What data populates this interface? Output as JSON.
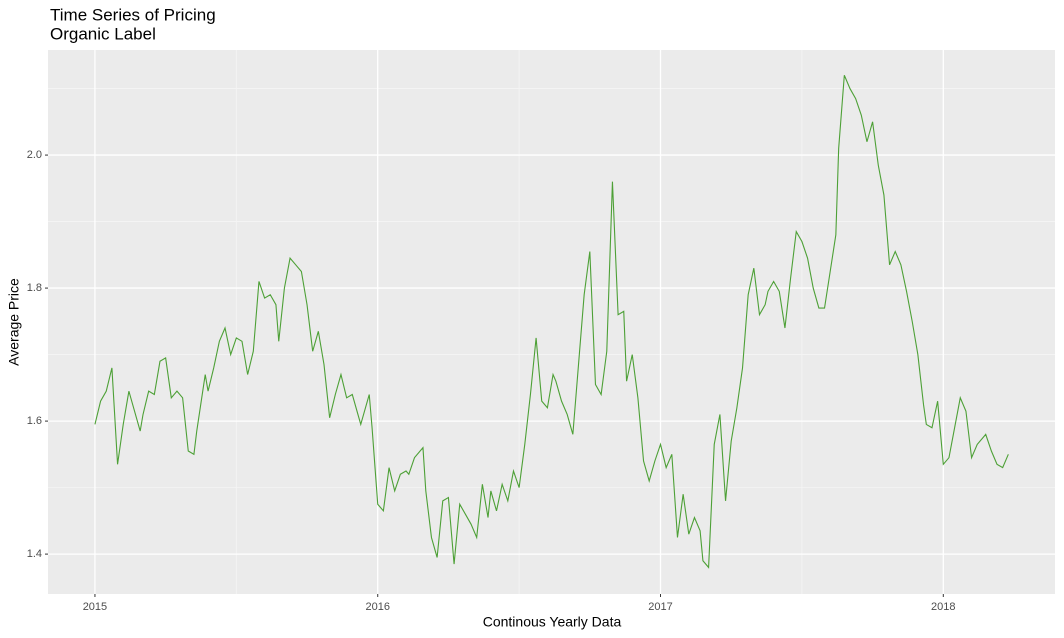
{
  "chart_data": {
    "type": "line",
    "title": "Time Series of Pricing",
    "subtitle": "Organic Label",
    "xlabel": "Continous Yearly Data",
    "ylabel": "Average Price",
    "x": [
      2015.0,
      2015.02,
      2015.04,
      2015.06,
      2015.08,
      2015.1,
      2015.12,
      2015.13,
      2015.16,
      2015.17,
      2015.19,
      2015.21,
      2015.23,
      2015.25,
      2015.27,
      2015.29,
      2015.31,
      2015.33,
      2015.35,
      2015.36,
      2015.39,
      2015.4,
      2015.42,
      2015.44,
      2015.46,
      2015.48,
      2015.5,
      2015.52,
      2015.54,
      2015.56,
      2015.58,
      2015.6,
      2015.62,
      2015.64,
      2015.65,
      2015.67,
      2015.69,
      2015.71,
      2015.73,
      2015.75,
      2015.77,
      2015.79,
      2015.81,
      2015.83,
      2015.85,
      2015.87,
      2015.89,
      2015.91,
      2015.93,
      2015.94,
      2015.97,
      2015.98,
      2016.0,
      2016.02,
      2016.04,
      2016.06,
      2016.08,
      2016.1,
      2016.11,
      2016.13,
      2016.16,
      2016.17,
      2016.19,
      2016.21,
      2016.23,
      2016.25,
      2016.27,
      2016.29,
      2016.31,
      2016.33,
      2016.35,
      2016.37,
      2016.39,
      2016.4,
      2016.42,
      2016.44,
      2016.46,
      2016.48,
      2016.5,
      2016.52,
      2016.54,
      2016.56,
      2016.58,
      2016.6,
      2016.62,
      2016.63,
      2016.65,
      2016.67,
      2016.69,
      2016.71,
      2016.73,
      2016.75,
      2016.77,
      2016.79,
      2016.81,
      2016.83,
      2016.85,
      2016.87,
      2016.88,
      2016.9,
      2016.92,
      2016.94,
      2016.96,
      2016.98,
      2017.0,
      2017.02,
      2017.04,
      2017.06,
      2017.08,
      2017.1,
      2017.12,
      2017.14,
      2017.15,
      2017.17,
      2017.19,
      2017.21,
      2017.23,
      2017.25,
      2017.27,
      2017.29,
      2017.31,
      2017.33,
      2017.35,
      2017.37,
      2017.38,
      2017.4,
      2017.42,
      2017.44,
      2017.46,
      2017.48,
      2017.5,
      2017.52,
      2017.54,
      2017.56,
      2017.58,
      2017.6,
      2017.62,
      2017.63,
      2017.65,
      2017.67,
      2017.69,
      2017.71,
      2017.73,
      2017.75,
      2017.77,
      2017.79,
      2017.81,
      2017.83,
      2017.85,
      2017.87,
      2017.89,
      2017.91,
      2017.93,
      2017.94,
      2017.96,
      2017.98,
      2018.0,
      2018.02,
      2018.04,
      2018.06,
      2018.08,
      2018.1,
      2018.12,
      2018.14,
      2018.15,
      2018.17,
      2018.19,
      2018.21,
      2018.23
    ],
    "series": [
      {
        "color": "#4da036",
        "values": [
          1.595,
          1.63,
          1.645,
          1.68,
          1.535,
          1.595,
          1.645,
          1.63,
          1.585,
          1.61,
          1.645,
          1.64,
          1.69,
          1.695,
          1.635,
          1.645,
          1.635,
          1.555,
          1.55,
          1.585,
          1.67,
          1.645,
          1.68,
          1.72,
          1.74,
          1.7,
          1.725,
          1.72,
          1.67,
          1.705,
          1.81,
          1.785,
          1.79,
          1.775,
          1.72,
          1.8,
          1.845,
          1.835,
          1.825,
          1.775,
          1.705,
          1.735,
          1.685,
          1.605,
          1.64,
          1.67,
          1.635,
          1.64,
          1.61,
          1.595,
          1.64,
          1.59,
          1.475,
          1.465,
          1.53,
          1.495,
          1.52,
          1.525,
          1.52,
          1.545,
          1.56,
          1.495,
          1.425,
          1.395,
          1.48,
          1.485,
          1.385,
          1.475,
          1.46,
          1.445,
          1.425,
          1.505,
          1.455,
          1.495,
          1.465,
          1.505,
          1.48,
          1.525,
          1.5,
          1.565,
          1.64,
          1.725,
          1.63,
          1.62,
          1.67,
          1.66,
          1.63,
          1.61,
          1.58,
          1.685,
          1.79,
          1.855,
          1.655,
          1.64,
          1.705,
          1.96,
          1.76,
          1.765,
          1.66,
          1.7,
          1.635,
          1.54,
          1.51,
          1.54,
          1.565,
          1.53,
          1.55,
          1.425,
          1.49,
          1.43,
          1.455,
          1.435,
          1.39,
          1.38,
          1.565,
          1.61,
          1.48,
          1.57,
          1.62,
          1.68,
          1.79,
          1.83,
          1.76,
          1.775,
          1.795,
          1.81,
          1.795,
          1.74,
          1.815,
          1.885,
          1.87,
          1.845,
          1.8,
          1.77,
          1.77,
          1.825,
          1.88,
          2.01,
          2.12,
          2.1,
          2.085,
          2.06,
          2.02,
          2.05,
          1.985,
          1.94,
          1.835,
          1.855,
          1.835,
          1.795,
          1.75,
          1.7,
          1.625,
          1.595,
          1.59,
          1.63,
          1.535,
          1.545,
          1.59,
          1.635,
          1.615,
          1.545,
          1.565,
          1.575,
          1.58,
          1.555,
          1.535,
          1.53,
          1.55
        ]
      }
    ],
    "xlim": [
      2014.834,
      2018.395
    ],
    "xticks": [
      2015,
      2016,
      2017,
      2018
    ],
    "ylim": [
      1.34,
      2.158
    ],
    "yticks": [
      1.4,
      1.6,
      1.8,
      {
        "value": 2.0,
        "label": "2.0"
      }
    ],
    "grid": true
  }
}
